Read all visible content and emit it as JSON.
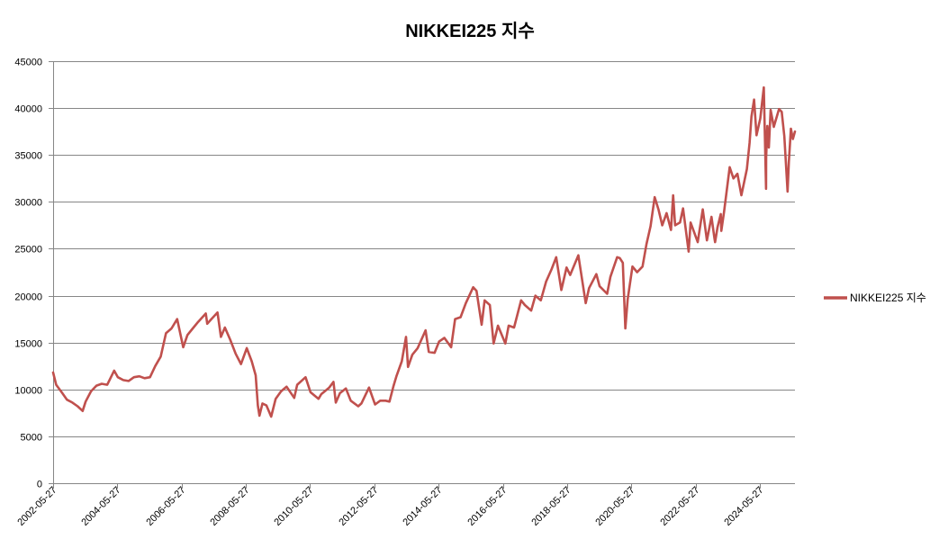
{
  "colors": {
    "series": "#c0504d",
    "grid": "#868686",
    "axis": "#868686",
    "text": "#000000",
    "background": "#ffffff"
  },
  "chart_data": {
    "type": "line",
    "title": "NIKKEI225 지수",
    "xlabel": "",
    "ylabel": "",
    "ylim": [
      0,
      45000
    ],
    "xlim": [
      "2002-05-27",
      "2025-06-30"
    ],
    "grid": true,
    "legend_position": "right",
    "y_ticks": [
      0,
      5000,
      10000,
      15000,
      20000,
      25000,
      30000,
      35000,
      40000,
      45000
    ],
    "y_tick_labels": [
      "0",
      "5000",
      "10000",
      "15000",
      "20000",
      "25000",
      "30000",
      "35000",
      "40000",
      "45000"
    ],
    "x_ticks": [
      "2002-05-27",
      "2004-05-27",
      "2006-05-27",
      "2008-05-27",
      "2010-05-27",
      "2012-05-27",
      "2014-05-27",
      "2016-05-27",
      "2018-05-27",
      "2020-05-27",
      "2022-05-27",
      "2024-05-27"
    ],
    "x_tick_labels": [
      "2002-05-27",
      "2004-05-27",
      "2006-05-27",
      "2008-05-27",
      "2010-05-27",
      "2012-05-27",
      "2014-05-27",
      "2016-05-27",
      "2018-05-27",
      "2020-05-27",
      "2022-05-27",
      "2024-05-27"
    ],
    "series": [
      {
        "name": "NIKKEI225 지수",
        "color": "#c0504d",
        "x": [
          "2002-05-27",
          "2002-07-01",
          "2002-09-01",
          "2002-11-01",
          "2003-01-01",
          "2003-03-01",
          "2003-04-28",
          "2003-06-01",
          "2003-08-01",
          "2003-10-01",
          "2003-12-01",
          "2004-02-01",
          "2004-04-20",
          "2004-06-01",
          "2004-08-01",
          "2004-10-01",
          "2004-12-01",
          "2005-02-01",
          "2005-04-01",
          "2005-06-01",
          "2005-08-01",
          "2005-10-01",
          "2005-12-01",
          "2006-02-01",
          "2006-04-07",
          "2006-06-14",
          "2006-08-01",
          "2006-10-01",
          "2006-12-01",
          "2007-02-26",
          "2007-03-15",
          "2007-05-01",
          "2007-07-09",
          "2007-08-17",
          "2007-10-01",
          "2007-12-01",
          "2008-02-01",
          "2008-04-01",
          "2008-06-06",
          "2008-08-01",
          "2008-09-15",
          "2008-10-10",
          "2008-10-28",
          "2008-12-01",
          "2009-01-15",
          "2009-03-10",
          "2009-05-01",
          "2009-07-01",
          "2009-09-01",
          "2009-11-27",
          "2009-12-31",
          "2010-04-05",
          "2010-06-01",
          "2010-08-31",
          "2010-10-01",
          "2010-12-31",
          "2011-02-17",
          "2011-03-15",
          "2011-05-01",
          "2011-07-08",
          "2011-09-01",
          "2011-11-25",
          "2011-12-31",
          "2012-03-27",
          "2012-06-04",
          "2012-08-01",
          "2012-10-01",
          "2012-11-14",
          "2012-12-31",
          "2013-02-01",
          "2013-04-04",
          "2013-05-22",
          "2013-06-13",
          "2013-08-01",
          "2013-10-01",
          "2013-12-30",
          "2014-02-05",
          "2014-04-11",
          "2014-06-01",
          "2014-08-01",
          "2014-10-17",
          "2014-12-01",
          "2015-02-01",
          "2015-04-01",
          "2015-06-24",
          "2015-08-01",
          "2015-09-29",
          "2015-11-01",
          "2015-12-31",
          "2016-02-12",
          "2016-04-01",
          "2016-06-24",
          "2016-08-01",
          "2016-10-01",
          "2016-12-20",
          "2017-02-01",
          "2017-04-14",
          "2017-06-01",
          "2017-08-01",
          "2017-10-01",
          "2017-12-01",
          "2018-01-23",
          "2018-03-23",
          "2018-05-21",
          "2018-07-01",
          "2018-10-02",
          "2018-12-25",
          "2019-02-01",
          "2019-04-25",
          "2019-06-01",
          "2019-08-26",
          "2019-10-01",
          "2019-12-17",
          "2020-01-17",
          "2020-02-20",
          "2020-03-19",
          "2020-04-15",
          "2020-06-08",
          "2020-08-01",
          "2020-10-01",
          "2020-11-15",
          "2020-12-31",
          "2021-02-16",
          "2021-03-31",
          "2021-05-13",
          "2021-07-01",
          "2021-08-20",
          "2021-09-14",
          "2021-10-06",
          "2021-12-01",
          "2022-01-05",
          "2022-03-09",
          "2022-04-01",
          "2022-06-20",
          "2022-08-17",
          "2022-10-03",
          "2022-11-24",
          "2022-12-28",
          "2023-01-04",
          "2023-02-01",
          "2023-03-09",
          "2023-03-16",
          "2023-04-15",
          "2023-06-19",
          "2023-08-01",
          "2023-09-15",
          "2023-10-30",
          "2023-12-31",
          "2024-01-31",
          "2024-02-22",
          "2024-03-22",
          "2024-04-19",
          "2024-06-01",
          "2024-07-11",
          "2024-08-05",
          "2024-08-06",
          "2024-08-20",
          "2024-09-06",
          "2024-09-27",
          "2024-11-01",
          "2024-12-31",
          "2025-01-31",
          "2025-03-01",
          "2025-04-07",
          "2025-04-21",
          "2025-05-15",
          "2025-06-06",
          "2025-06-30"
        ],
        "values": [
          11800,
          10500,
          9700,
          8900,
          8600,
          8200,
          7700,
          8700,
          9800,
          10400,
          10600,
          10500,
          12000,
          11300,
          11000,
          10900,
          11300,
          11400,
          11200,
          11300,
          12500,
          13500,
          16000,
          16500,
          17500,
          14500,
          15800,
          16500,
          17200,
          18100,
          17000,
          17500,
          18200,
          15600,
          16600,
          15300,
          13800,
          12700,
          14400,
          13000,
          11500,
          8300,
          7200,
          8500,
          8300,
          7100,
          9000,
          9800,
          10300,
          9100,
          10500,
          11300,
          9700,
          9000,
          9500,
          10200,
          10800,
          8600,
          9600,
          10100,
          8800,
          8200,
          8500,
          10200,
          8400,
          8800,
          8800,
          8700,
          10400,
          11400,
          13000,
          15600,
          12400,
          13700,
          14400,
          16300,
          14000,
          13900,
          15100,
          15500,
          14500,
          17500,
          17700,
          19200,
          20900,
          20500,
          16900,
          19500,
          19000,
          14900,
          16800,
          14900,
          16800,
          16600,
          19500,
          19000,
          18400,
          20000,
          19500,
          21500,
          22800,
          24100,
          20600,
          23000,
          22200,
          24300,
          19200,
          20800,
          22300,
          21000,
          20200,
          22000,
          24100,
          24000,
          23500,
          16500,
          19600,
          23100,
          22500,
          23100,
          25500,
          27400,
          30500,
          29200,
          27500,
          28800,
          27000,
          30700,
          27500,
          27800,
          29300,
          24700,
          27800,
          25700,
          29200,
          25900,
          28400,
          26100,
          25700,
          27300,
          28700,
          26900,
          28900,
          33700,
          32500,
          33000,
          30700,
          33500,
          36300,
          39100,
          40900,
          37100,
          38900,
          42200,
          31400,
          34700,
          38100,
          35800,
          39800,
          38000,
          39900,
          39600,
          37000,
          31100,
          34200,
          37800,
          36700,
          37500
        ]
      }
    ]
  }
}
